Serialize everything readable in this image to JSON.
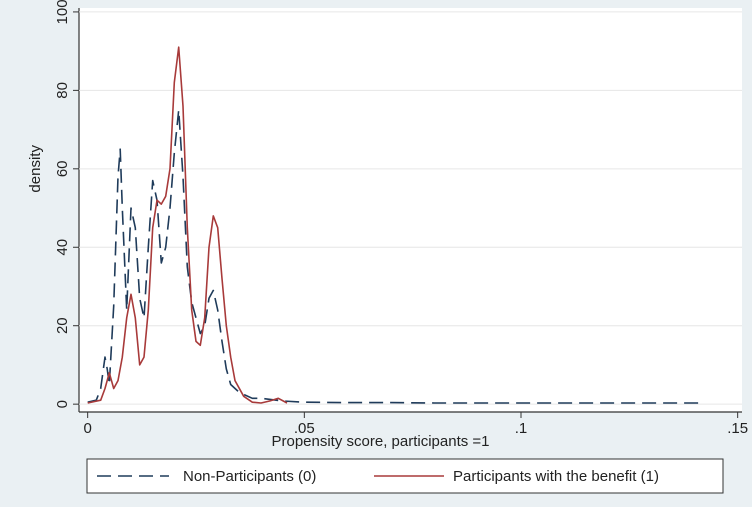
{
  "chart_data": {
    "type": "line",
    "title": "",
    "xlabel": "Propensity score, participants =1",
    "ylabel": "density",
    "xlim": [
      -0.002,
      0.151
    ],
    "ylim": [
      -2,
      101
    ],
    "x_ticks": [
      0,
      0.05,
      0.1,
      0.15
    ],
    "x_tick_labels": [
      "0",
      ".05",
      ".1",
      ".15"
    ],
    "y_ticks": [
      0,
      20,
      40,
      60,
      80,
      100
    ],
    "y_tick_labels": [
      "0",
      "20",
      "40",
      "60",
      "80",
      "100"
    ],
    "grid": true,
    "legend_position": "bottom",
    "series": [
      {
        "name": "Non-Participants (0)",
        "color": "#1f3b5a",
        "dash": "long-dash",
        "points": [
          [
            0.0,
            0.5
          ],
          [
            0.002,
            1
          ],
          [
            0.003,
            4
          ],
          [
            0.004,
            12
          ],
          [
            0.0045,
            9
          ],
          [
            0.005,
            5
          ],
          [
            0.006,
            25
          ],
          [
            0.007,
            58
          ],
          [
            0.0075,
            65
          ],
          [
            0.008,
            50
          ],
          [
            0.009,
            24
          ],
          [
            0.01,
            50
          ],
          [
            0.011,
            45
          ],
          [
            0.012,
            27
          ],
          [
            0.013,
            22
          ],
          [
            0.014,
            40
          ],
          [
            0.015,
            57
          ],
          [
            0.016,
            52
          ],
          [
            0.017,
            36
          ],
          [
            0.018,
            40
          ],
          [
            0.019,
            50
          ],
          [
            0.02,
            64
          ],
          [
            0.021,
            75
          ],
          [
            0.022,
            58
          ],
          [
            0.023,
            35
          ],
          [
            0.024,
            26
          ],
          [
            0.025,
            22
          ],
          [
            0.026,
            18
          ],
          [
            0.027,
            20
          ],
          [
            0.028,
            27
          ],
          [
            0.029,
            29
          ],
          [
            0.03,
            24
          ],
          [
            0.031,
            16
          ],
          [
            0.032,
            9
          ],
          [
            0.033,
            5
          ],
          [
            0.035,
            3
          ],
          [
            0.038,
            1.5
          ],
          [
            0.04,
            1.5
          ],
          [
            0.045,
            0.8
          ],
          [
            0.05,
            0.5
          ],
          [
            0.06,
            0.4
          ],
          [
            0.07,
            0.4
          ],
          [
            0.08,
            0.3
          ],
          [
            0.1,
            0.3
          ],
          [
            0.12,
            0.3
          ],
          [
            0.142,
            0.3
          ]
        ]
      },
      {
        "name": "Participants with the benefit (1)",
        "color": "#a83a3a",
        "dash": "solid",
        "points": [
          [
            0.0,
            0.3
          ],
          [
            0.003,
            1
          ],
          [
            0.004,
            4
          ],
          [
            0.005,
            8
          ],
          [
            0.006,
            4
          ],
          [
            0.007,
            6
          ],
          [
            0.008,
            12
          ],
          [
            0.009,
            22
          ],
          [
            0.01,
            28
          ],
          [
            0.011,
            22
          ],
          [
            0.012,
            10
          ],
          [
            0.013,
            12
          ],
          [
            0.014,
            24
          ],
          [
            0.015,
            45
          ],
          [
            0.016,
            52
          ],
          [
            0.017,
            51
          ],
          [
            0.018,
            53
          ],
          [
            0.019,
            60
          ],
          [
            0.02,
            82
          ],
          [
            0.021,
            91
          ],
          [
            0.022,
            76
          ],
          [
            0.023,
            45
          ],
          [
            0.024,
            24
          ],
          [
            0.025,
            16
          ],
          [
            0.026,
            15
          ],
          [
            0.027,
            22
          ],
          [
            0.028,
            40
          ],
          [
            0.029,
            48
          ],
          [
            0.03,
            45
          ],
          [
            0.031,
            32
          ],
          [
            0.032,
            20
          ],
          [
            0.033,
            12
          ],
          [
            0.034,
            6
          ],
          [
            0.036,
            2
          ],
          [
            0.038,
            0.5
          ],
          [
            0.04,
            0.3
          ],
          [
            0.042,
            0.8
          ],
          [
            0.044,
            1.5
          ],
          [
            0.046,
            0.3
          ]
        ]
      }
    ]
  }
}
